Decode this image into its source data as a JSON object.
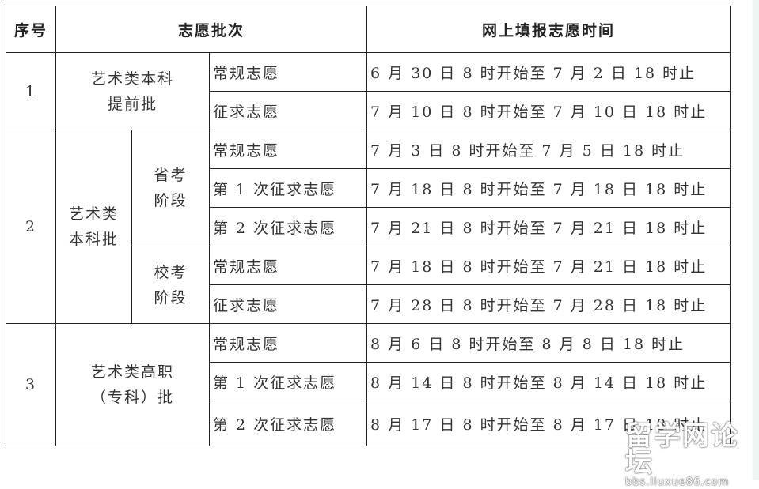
{
  "headers": {
    "seq": "序号",
    "batch": "志愿批次",
    "time": "网上填报志愿时间"
  },
  "groups": [
    {
      "seq": "1",
      "batch": "艺术类本科\n提前批",
      "rows": [
        {
          "type": "常规志愿",
          "time": "6 月 30 日 8 时开始至 7 月 2 日 18 时止"
        },
        {
          "type": "征求志愿",
          "time": "7 月 10 日 8 时开始至 7 月 10 日 18 时止"
        }
      ]
    },
    {
      "seq": "2",
      "batch": "艺术类\n本科批",
      "stages": [
        {
          "name": "省考\n阶段",
          "rows": [
            {
              "type": "常规志愿",
              "time": "7 月 3 日 8 时开始至 7 月 5 日 18 时止"
            },
            {
              "type": "第 1 次征求志愿",
              "time": "7 月 18 日 8 时开始至 7 月 18 日 18 时止"
            },
            {
              "type": "第 2 次征求志愿",
              "time": "7 月 21 日 8 时开始至 7 月 21 日 18 时止"
            }
          ]
        },
        {
          "name": "校考\n阶段",
          "rows": [
            {
              "type": "常规志愿",
              "time": "7 月 18 日 8 时开始至 7 月 21 日 18 时止"
            },
            {
              "type": "征求志愿",
              "time": "7 月 28 日 8 时开始至 7 月 28 日 18 时止"
            }
          ]
        }
      ]
    },
    {
      "seq": "3",
      "batch": "艺术类高职\n（专科）批",
      "rows": [
        {
          "type": "常规志愿",
          "time": "8 月 6 日 8 时开始至 8 月 8 日 18 时止"
        },
        {
          "type": "第 1 次征求志愿",
          "time": "8 月 14 日 8 时开始至 8 月 14 日 18 时止"
        },
        {
          "type": "第 2 次征求志愿",
          "time": "8 月 17 日 8 时开始至 8 月 17 日 18 时止"
        }
      ]
    }
  ],
  "watermark": {
    "logo": "留学网论坛",
    "url": "bbs.liuxue86.com"
  }
}
